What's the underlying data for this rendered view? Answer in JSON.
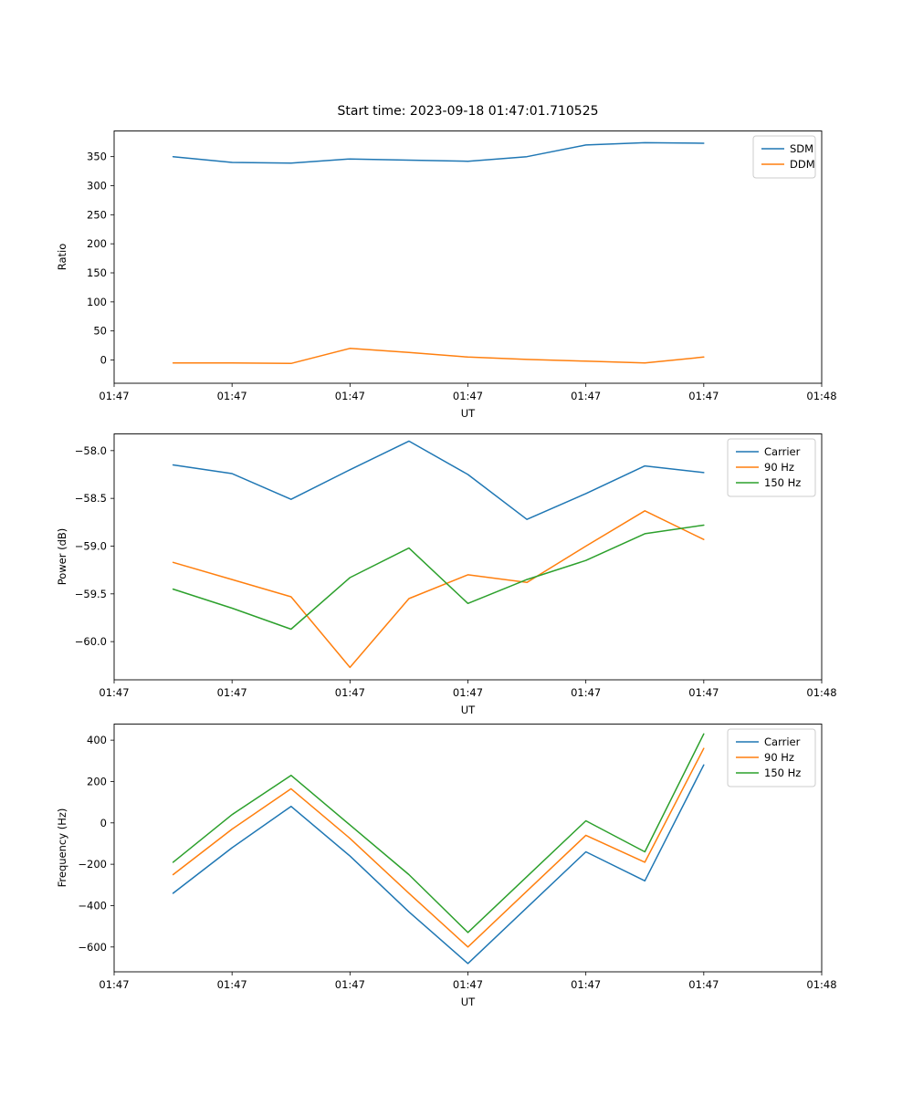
{
  "figure": {
    "title": "Start time: 2023-09-18 01:47:01.710525"
  },
  "colors": {
    "blue": "#1f77b4",
    "orange": "#ff7f0e",
    "green": "#2ca02c",
    "legend_border": "#cccccc",
    "axis": "#000000"
  },
  "chart_data": [
    {
      "type": "line",
      "name": "ratio",
      "xlabel": "UT",
      "ylabel": "Ratio",
      "xlim": [
        0,
        60
      ],
      "ylim": [
        -40,
        395
      ],
      "xticks": [
        0,
        10,
        20,
        30,
        40,
        50,
        60
      ],
      "xtick_labels": [
        "01:47",
        "01:47",
        "01:47",
        "01:47",
        "01:47",
        "01:47",
        "01:48"
      ],
      "yticks": [
        0,
        50,
        100,
        150,
        200,
        250,
        300,
        350
      ],
      "ytick_labels": [
        "0",
        "50",
        "100",
        "150",
        "200",
        "250",
        "300",
        "350"
      ],
      "grid": false,
      "legend_position": "upper right",
      "x": [
        5,
        10,
        15,
        20,
        25,
        30,
        35,
        40,
        45,
        50
      ],
      "series": [
        {
          "name": "SDM",
          "color": "#1f77b4",
          "values": [
            350,
            340,
            339,
            346,
            344,
            342,
            350,
            370,
            374,
            373
          ]
        },
        {
          "name": "DDM",
          "color": "#ff7f0e",
          "values": [
            -5,
            -5,
            -6,
            20,
            13,
            5,
            1,
            -2,
            -5,
            5
          ]
        }
      ]
    },
    {
      "type": "line",
      "name": "power",
      "xlabel": "UT",
      "ylabel": "Power (dB)",
      "xlim": [
        0,
        60
      ],
      "ylim": [
        -60.4,
        -57.82
      ],
      "xticks": [
        0,
        10,
        20,
        30,
        40,
        50,
        60
      ],
      "xtick_labels": [
        "01:47",
        "01:47",
        "01:47",
        "01:47",
        "01:47",
        "01:47",
        "01:48"
      ],
      "yticks": [
        -60.0,
        -59.5,
        -59.0,
        -58.5,
        -58.0
      ],
      "ytick_labels": [
        "−60.0",
        "−59.5",
        "−59.0",
        "−58.5",
        "−58.0"
      ],
      "grid": false,
      "legend_position": "upper right",
      "x": [
        5,
        10,
        15,
        20,
        25,
        30,
        35,
        40,
        45,
        50
      ],
      "series": [
        {
          "name": "Carrier",
          "color": "#1f77b4",
          "values": [
            -58.15,
            -58.24,
            -58.51,
            -58.2,
            -57.9,
            -58.25,
            -58.72,
            -58.45,
            -58.16,
            -58.23
          ]
        },
        {
          "name": "90 Hz",
          "color": "#ff7f0e",
          "values": [
            -59.17,
            -59.35,
            -59.53,
            -60.27,
            -59.55,
            -59.3,
            -59.38,
            -59.0,
            -58.63,
            -58.93
          ]
        },
        {
          "name": "150 Hz",
          "color": "#2ca02c",
          "values": [
            -59.45,
            -59.65,
            -59.87,
            -59.33,
            -59.02,
            -59.6,
            -59.35,
            -59.15,
            -58.87,
            -58.78
          ]
        }
      ]
    },
    {
      "type": "line",
      "name": "frequency",
      "xlabel": "UT",
      "ylabel": "Frequency (Hz)",
      "xlim": [
        0,
        60
      ],
      "ylim": [
        -720,
        480
      ],
      "xticks": [
        0,
        10,
        20,
        30,
        40,
        50,
        60
      ],
      "xtick_labels": [
        "01:47",
        "01:47",
        "01:47",
        "01:47",
        "01:47",
        "01:47",
        "01:48"
      ],
      "yticks": [
        -600,
        -400,
        -200,
        0,
        200,
        400
      ],
      "ytick_labels": [
        "−600",
        "−400",
        "−200",
        "0",
        "200",
        "400"
      ],
      "grid": false,
      "legend_position": "upper right",
      "x": [
        5,
        10,
        15,
        20,
        25,
        30,
        35,
        40,
        45,
        50
      ],
      "series": [
        {
          "name": "Carrier",
          "color": "#1f77b4",
          "values": [
            -340,
            -120,
            80,
            -160,
            -430,
            -680,
            -410,
            -140,
            -280,
            280
          ]
        },
        {
          "name": "90 Hz",
          "color": "#ff7f0e",
          "values": [
            -250,
            -30,
            165,
            -75,
            -340,
            -600,
            -330,
            -60,
            -190,
            360
          ]
        },
        {
          "name": "150 Hz",
          "color": "#2ca02c",
          "values": [
            -190,
            40,
            230,
            -10,
            -250,
            -530,
            -260,
            10,
            -140,
            430
          ]
        }
      ]
    }
  ]
}
